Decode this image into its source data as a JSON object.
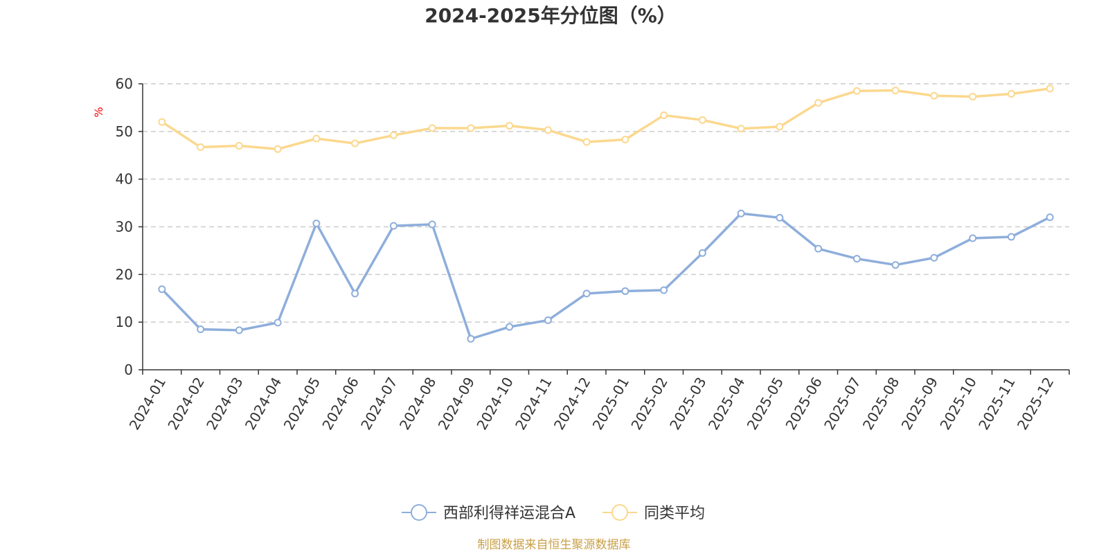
{
  "chart_data": {
    "type": "line",
    "title": "2024-2025年分位图（%）",
    "ylabel": "%",
    "ylim": [
      0,
      60
    ],
    "yticks": [
      0,
      10,
      20,
      30,
      40,
      50,
      60
    ],
    "grid": true,
    "legend_position": "bottom",
    "categories": [
      "2024-01",
      "2024-02",
      "2024-03",
      "2024-04",
      "2024-05",
      "2024-06",
      "2024-07",
      "2024-08",
      "2024-09",
      "2024-10",
      "2024-11",
      "2024-12",
      "2025-01",
      "2025-02",
      "2025-03",
      "2025-04",
      "2025-05",
      "2025-06",
      "2025-07",
      "2025-08",
      "2025-09",
      "2025-10",
      "2025-11",
      "2025-12"
    ],
    "series": [
      {
        "name": "西部利得祥运混合A",
        "color": "#8eaedb",
        "values": [
          16.9,
          8.5,
          8.3,
          9.9,
          30.7,
          16.0,
          30.2,
          30.5,
          6.5,
          9.0,
          10.4,
          16.0,
          16.5,
          16.7,
          24.5,
          32.8,
          31.9,
          25.4,
          23.3,
          22.0,
          23.5,
          27.6,
          27.9,
          32.0
        ]
      },
      {
        "name": "同类平均",
        "color": "#fbd88e",
        "values": [
          52.0,
          46.7,
          47.0,
          46.3,
          48.5,
          47.5,
          49.2,
          50.7,
          50.7,
          51.2,
          50.3,
          47.8,
          48.3,
          53.4,
          52.4,
          50.6,
          51.0,
          56.0,
          58.5,
          58.6,
          57.5,
          57.3,
          57.9,
          59.0
        ]
      }
    ],
    "unit_color": "#ff0000"
  },
  "source_text": "制图数据来自恒生聚源数据库",
  "source_color": "#c9a047",
  "axis_color": "#333333",
  "grid_color": "#cccccc"
}
